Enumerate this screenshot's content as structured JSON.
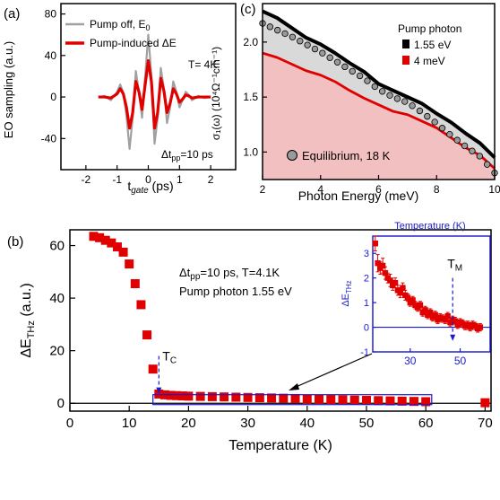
{
  "colors": {
    "red": "#e00000",
    "grey": "#a0a0a0",
    "blue": "#1a1ad0",
    "pink_fill": "#f2c0c0",
    "grey_fill": "#d9d9d9",
    "dots": "#9a9a9a",
    "black": "#000000"
  },
  "chart_data": [
    {
      "panel_label": "(a)",
      "type": "line",
      "xlabel_main": "t",
      "xlabel_sub": "gate",
      "xlabel_unit": " (ps)",
      "ylabel": "EO sampling (a.u.)",
      "xlim": [
        -2.8,
        2.8
      ],
      "ylim": [
        -70,
        90
      ],
      "x_ticks": [
        -2,
        -1,
        0,
        1,
        2
      ],
      "y_ticks": [
        -40,
        0,
        40,
        80
      ],
      "annotation_temp": "T= 4K",
      "annotation_dt_main": "Δt",
      "annotation_dt_sub": "pp",
      "annotation_dt_value": "=10 ps",
      "series": [
        {
          "name_main": "Pump off,  E",
          "name_sub": "0",
          "color": "#a0a0a0",
          "x": [
            -1.6,
            -1.4,
            -1.2,
            -1.0,
            -0.9,
            -0.8,
            -0.7,
            -0.6,
            -0.5,
            -0.4,
            -0.3,
            -0.2,
            -0.1,
            0.0,
            0.1,
            0.2,
            0.3,
            0.4,
            0.5,
            0.6,
            0.7,
            0.8,
            0.9,
            1.0,
            1.1,
            1.2,
            1.3,
            1.4,
            1.6,
            1.8,
            2.0
          ],
          "y": [
            0,
            1,
            -3,
            5,
            12,
            4,
            -18,
            -50,
            -20,
            25,
            5,
            -20,
            20,
            60,
            20,
            -45,
            -20,
            28,
            8,
            -25,
            -10,
            15,
            5,
            -10,
            -3,
            5,
            2,
            -3,
            1,
            -1,
            0
          ]
        },
        {
          "name_main": "Pump-induced ΔE",
          "name_sub": "",
          "color": "#e00000",
          "x": [
            -1.6,
            -1.4,
            -1.2,
            -1.0,
            -0.9,
            -0.8,
            -0.7,
            -0.6,
            -0.5,
            -0.4,
            -0.3,
            -0.2,
            -0.1,
            0.0,
            0.1,
            0.2,
            0.3,
            0.4,
            0.5,
            0.6,
            0.7,
            0.8,
            0.9,
            1.0,
            1.1,
            1.2,
            1.3,
            1.4,
            1.6,
            1.8,
            2.0
          ],
          "y": [
            0,
            0,
            -1,
            3,
            8,
            3,
            -10,
            -30,
            -15,
            15,
            5,
            -12,
            12,
            35,
            15,
            -30,
            -15,
            18,
            6,
            -15,
            -6,
            8,
            3,
            -5,
            -2,
            2,
            1,
            -1,
            0,
            0,
            0
          ]
        }
      ]
    },
    {
      "panel_label": "(c)",
      "type": "area",
      "xlabel": "Photon Energy (meV)",
      "ylabel": "σ₁(ω)  (10⁴Ω⁻¹cm⁻¹)",
      "xlim": [
        2,
        10
      ],
      "ylim": [
        0.75,
        2.35
      ],
      "x_ticks": [
        2,
        4,
        6,
        8,
        10
      ],
      "y_ticks": [
        1.0,
        1.5,
        2.0
      ],
      "legend_title": "Pump photon",
      "equilibrium_label": "Equilibrium, 18 K",
      "series": [
        {
          "name": "1.55 eV",
          "color": "#000000",
          "fill": "#d9d9d9",
          "x": [
            2.0,
            2.5,
            3.0,
            3.5,
            4.0,
            4.5,
            5.0,
            5.5,
            6.0,
            6.5,
            7.0,
            7.5,
            8.0,
            8.5,
            9.0,
            9.5,
            10.0
          ],
          "y": [
            2.28,
            2.22,
            2.13,
            2.04,
            1.98,
            1.9,
            1.81,
            1.73,
            1.62,
            1.56,
            1.5,
            1.44,
            1.35,
            1.27,
            1.17,
            1.08,
            0.95
          ]
        },
        {
          "name": "4 meV",
          "color": "#e00000",
          "fill": "#f2c0c0",
          "x": [
            2.0,
            2.5,
            3.0,
            3.5,
            4.0,
            4.5,
            5.0,
            5.5,
            6.0,
            6.5,
            7.0,
            7.5,
            8.0,
            8.5,
            9.0,
            9.5,
            10.0
          ],
          "y": [
            1.9,
            1.86,
            1.8,
            1.74,
            1.7,
            1.64,
            1.56,
            1.49,
            1.43,
            1.37,
            1.34,
            1.28,
            1.22,
            1.13,
            1.04,
            0.97,
            0.85
          ]
        },
        {
          "name": "Equilibrium, 18 K",
          "color": "#9a9a9a",
          "x": [
            2.0,
            2.5,
            3.0,
            3.5,
            4.0,
            4.5,
            5.0,
            5.5,
            6.0,
            6.5,
            7.0,
            7.5,
            8.0,
            8.5,
            9.0,
            9.5,
            10.0
          ],
          "y": [
            2.17,
            2.11,
            2.05,
            1.98,
            1.91,
            1.83,
            1.75,
            1.67,
            1.57,
            1.5,
            1.45,
            1.36,
            1.26,
            1.15,
            1.05,
            0.96,
            0.81
          ]
        }
      ]
    },
    {
      "panel_label": "(b)",
      "type": "scatter",
      "xlabel": "Temperature (K)",
      "ylabel_main": "ΔE",
      "ylabel_sub": "THz",
      "ylabel_unit": " (a.u.)",
      "xlim": [
        0,
        71
      ],
      "ylim": [
        -3,
        66
      ],
      "x_ticks": [
        0,
        10,
        20,
        30,
        40,
        50,
        60,
        70
      ],
      "y_ticks": [
        0,
        20,
        40,
        60
      ],
      "annotation_dt_main": "Δt",
      "annotation_dt_sub": "pp",
      "annotation_line1_rest": "=10 ps, T=4.1K",
      "annotation_line2": "Pump photon 1.55 eV",
      "tc_main": "T",
      "tc_sub": "C",
      "tc_value": 15,
      "series": [
        {
          "name": "ΔE_THz",
          "color": "#e00000",
          "x": [
            4,
            5,
            6,
            7,
            8,
            9,
            10,
            11,
            12,
            13,
            14,
            15,
            16,
            17,
            18,
            19,
            20,
            22,
            24,
            26,
            28,
            30,
            32,
            34,
            36,
            38,
            40,
            42,
            44,
            46,
            48,
            50,
            52,
            54,
            56,
            58,
            60,
            70
          ],
          "y": [
            63.5,
            63,
            62,
            61,
            59.5,
            57.5,
            53,
            45.5,
            37.5,
            26,
            13,
            3.5,
            3.2,
            3,
            2.9,
            2.8,
            2.7,
            2.6,
            2.5,
            2.4,
            2.3,
            2.2,
            2.1,
            2.0,
            1.9,
            1.8,
            1.6,
            1.5,
            1.4,
            1.3,
            1.2,
            1.1,
            1.0,
            0.9,
            0.8,
            0.7,
            0.6,
            0.2
          ]
        }
      ]
    },
    {
      "panel_label": "inset",
      "type": "scatter",
      "xlabel": "Temperature (K)",
      "ylabel_main": "ΔE",
      "ylabel_sub": "THz",
      "xlim": [
        15,
        62
      ],
      "ylim": [
        -1,
        3.7
      ],
      "x_ticks": [
        30,
        50
      ],
      "y_ticks": [
        -1,
        0,
        1,
        2,
        3
      ],
      "tm_main": "T",
      "tm_sub": "M",
      "tm_value": 47,
      "series": [
        {
          "name": "ΔE_THz inset",
          "color": "#e00000",
          "x": [
            16,
            17,
            18,
            19,
            20,
            21,
            22,
            23,
            24,
            25,
            26,
            27,
            28,
            29,
            30,
            31,
            32,
            33,
            34,
            35,
            36,
            37,
            38,
            39,
            40,
            41,
            42,
            43,
            44,
            45,
            46,
            47,
            48,
            49,
            50,
            51,
            52,
            53,
            54,
            55,
            56,
            57,
            58
          ],
          "y": [
            3.4,
            2.6,
            2.4,
            2.5,
            2.2,
            2.0,
            1.9,
            1.7,
            1.8,
            1.5,
            1.4,
            1.6,
            1.3,
            1.2,
            1.0,
            1.1,
            0.9,
            0.8,
            0.9,
            0.6,
            0.7,
            0.5,
            0.6,
            0.4,
            0.5,
            0.3,
            0.4,
            0.35,
            0.3,
            0.45,
            0.2,
            0.3,
            0.25,
            0.1,
            0.2,
            0.15,
            0.05,
            0.1,
            0.0,
            0.1,
            0.05,
            -0.05,
            0.0
          ],
          "err": [
            0.3,
            0.35,
            0.25,
            0.3,
            0.25,
            0.2,
            0.25,
            0.2,
            0.2,
            0.2,
            0.2,
            0.2,
            0.2,
            0.15,
            0.15,
            0.15,
            0.15,
            0.15,
            0.15,
            0.15,
            0.15,
            0.15,
            0.15,
            0.15,
            0.15,
            0.15,
            0.15,
            0.15,
            0.15,
            0.15,
            0.15,
            0.15,
            0.15,
            0.15,
            0.15,
            0.15,
            0.15,
            0.15,
            0.15,
            0.15,
            0.15,
            0.15,
            0.15
          ]
        }
      ]
    }
  ]
}
